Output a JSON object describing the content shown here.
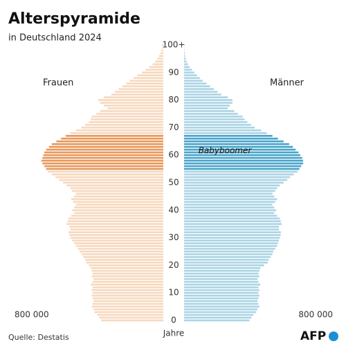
{
  "chart_data": {
    "type": "pyramid",
    "title": "Alterspyramide",
    "subtitle": "in Deutschland 2024",
    "y_label": "Jahre",
    "annotation": "Babyboomer",
    "source": "Quelle: Destatis",
    "logo": "AFP",
    "highlight_ages": [
      55,
      67
    ],
    "xlim": [
      0,
      800000
    ],
    "xticks": [
      {
        "value": 800000,
        "label": "800 000"
      }
    ],
    "ylim": [
      0,
      100
    ],
    "yticks": [
      0,
      10,
      20,
      30,
      40,
      50,
      60,
      70,
      80,
      90,
      {
        "value": 100,
        "label": "100+"
      }
    ],
    "series": [
      {
        "name": "Frauen",
        "side": "left",
        "color": "#f7d9bf",
        "highlight_color": "#e8995c",
        "values": [
          335000,
          345000,
          355000,
          370000,
          375000,
          385000,
          380000,
          375000,
          380000,
          385000,
          380000,
          385000,
          380000,
          390000,
          380000,
          375000,
          385000,
          380000,
          385000,
          390000,
          400000,
          415000,
          420000,
          430000,
          440000,
          450000,
          460000,
          470000,
          480000,
          490000,
          500000,
          505000,
          510000,
          500000,
          505000,
          520000,
          515000,
          510000,
          495000,
          480000,
          490000,
          480000,
          470000,
          485000,
          495000,
          480000,
          470000,
          490000,
          500000,
          520000,
          540000,
          560000,
          580000,
          600000,
          620000,
          630000,
          640000,
          650000,
          655000,
          650000,
          645000,
          640000,
          630000,
          615000,
          600000,
          575000,
          550000,
          525000,
          500000,
          470000,
          440000,
          420000,
          400000,
          390000,
          385000,
          360000,
          340000,
          300000,
          320000,
          340000,
          350000,
          320000,
          280000,
          260000,
          240000,
          220000,
          200000,
          180000,
          160000,
          140000,
          115000,
          95000,
          75000,
          58000,
          44000,
          32000,
          22000,
          15000,
          10000,
          6000,
          8000
        ]
      },
      {
        "name": "Männer",
        "side": "right",
        "color": "#acd5e5",
        "highlight_color": "#4aa5cb",
        "values": [
          352000,
          362000,
          373000,
          388000,
          394000,
          405000,
          400000,
          395000,
          400000,
          405000,
          400000,
          405000,
          400000,
          410000,
          400000,
          395000,
          405000,
          400000,
          405000,
          410000,
          430000,
          450000,
          455000,
          465000,
          475000,
          480000,
          490000,
          500000,
          505000,
          510000,
          515000,
          520000,
          520000,
          510000,
          510000,
          525000,
          520000,
          515000,
          500000,
          485000,
          495000,
          485000,
          475000,
          490000,
          500000,
          485000,
          475000,
          490000,
          500000,
          515000,
          535000,
          555000,
          570000,
          590000,
          610000,
          620000,
          630000,
          640000,
          640000,
          635000,
          625000,
          615000,
          600000,
          585000,
          565000,
          535000,
          505000,
          475000,
          445000,
          415000,
          380000,
          360000,
          340000,
          325000,
          315000,
          290000,
          270000,
          235000,
          245000,
          260000,
          260000,
          235000,
          200000,
          180000,
          160000,
          140000,
          120000,
          100000,
          85000,
          70000,
          55000,
          42000,
          30000,
          21000,
          14000,
          9000,
          6000,
          4000,
          2000,
          1000,
          2000
        ]
      }
    ]
  }
}
